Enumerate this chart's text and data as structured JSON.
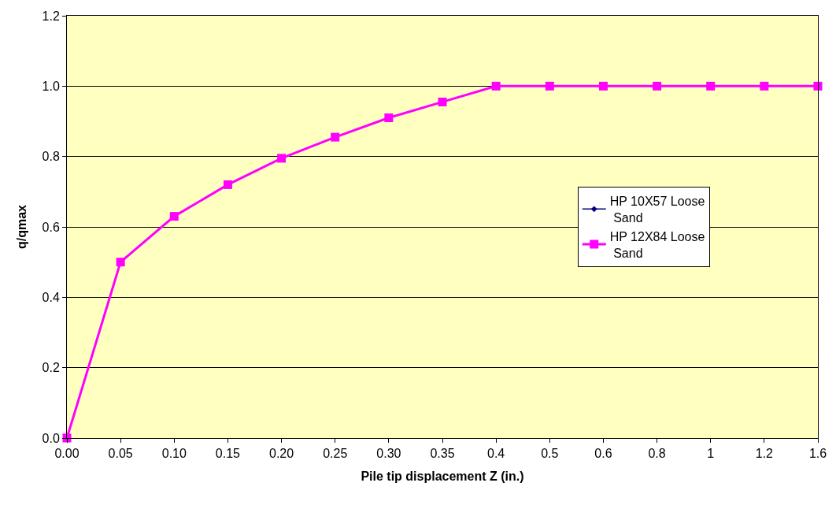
{
  "chart_data": {
    "type": "line",
    "xlabel": "Pile tip displacement Z (in.)",
    "ylabel": "q/qmax",
    "categories": [
      "0.00",
      "0.05",
      "0.10",
      "0.15",
      "0.20",
      "0.25",
      "0.30",
      "0.35",
      "0.4",
      "0.5",
      "0.6",
      "0.8",
      "1",
      "1.2",
      "1.6"
    ],
    "series": [
      {
        "name": "HP 10X57 Loose Sand",
        "color": "#000080",
        "marker": "diamond",
        "values": [
          null,
          null,
          null,
          null,
          null,
          null,
          null,
          null,
          null,
          null,
          null,
          null,
          null,
          null,
          null
        ]
      },
      {
        "name": "HP 12X84 Loose Sand",
        "color": "#ff00ff",
        "marker": "square",
        "values": [
          0,
          0.5,
          0.63,
          0.72,
          0.795,
          0.855,
          0.91,
          0.955,
          1,
          1,
          1,
          1,
          1,
          1,
          1
        ]
      }
    ],
    "ylim": [
      0,
      1.2
    ],
    "yticks": [
      {
        "value": 0,
        "label": "0.0"
      },
      0.2,
      0.4,
      0.6,
      0.8,
      {
        "value": 1,
        "label": "1.0"
      },
      1.2
    ],
    "grid": "y",
    "legend": "right"
  }
}
